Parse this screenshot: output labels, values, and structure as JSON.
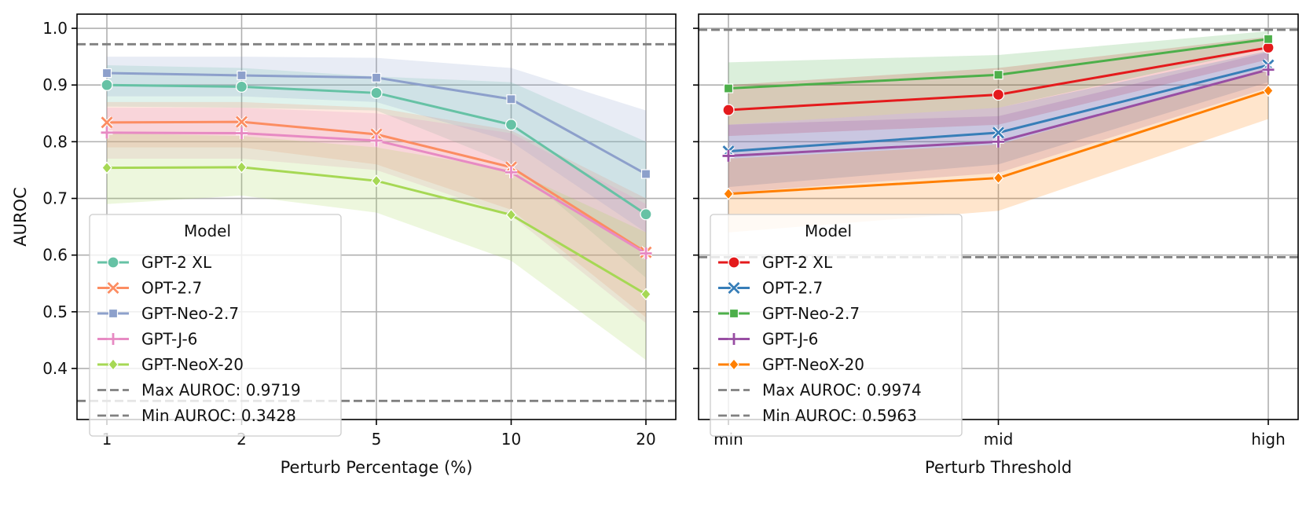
{
  "chart_data": [
    {
      "type": "line",
      "xlabel": "Perturb Percentage (%)",
      "ylabel": "AUROC",
      "categories": [
        "1",
        "2",
        "5",
        "10",
        "20"
      ],
      "ylim": [
        0.31,
        1.025
      ],
      "yticks": [
        0.4,
        0.5,
        0.6,
        0.7,
        0.8,
        0.9,
        1.0
      ],
      "ytick_labels": [
        "0.4",
        "0.5",
        "0.6",
        "0.7",
        "0.8",
        "0.9",
        "1.0"
      ],
      "grid": true,
      "legend": {
        "title": "Model",
        "placement": "lower-left"
      },
      "series": [
        {
          "name": "GPT-2 XL",
          "color": "#66c2a5",
          "marker": "circle",
          "values": [
            0.9,
            0.897,
            0.886,
            0.83,
            0.672
          ],
          "lower": [
            0.862,
            0.86,
            0.855,
            0.76,
            0.56
          ],
          "upper": [
            0.935,
            0.93,
            0.915,
            0.905,
            0.8
          ]
        },
        {
          "name": "OPT-2.7",
          "color": "#fc8d62",
          "marker": "x",
          "values": [
            0.834,
            0.835,
            0.813,
            0.755,
            0.605
          ],
          "lower": [
            0.79,
            0.79,
            0.76,
            0.68,
            0.49
          ],
          "upper": [
            0.87,
            0.87,
            0.86,
            0.82,
            0.7
          ]
        },
        {
          "name": "GPT-Neo-2.7",
          "color": "#8da0cb",
          "marker": "square",
          "values": [
            0.921,
            0.917,
            0.913,
            0.875,
            0.743
          ],
          "lower": [
            0.88,
            0.88,
            0.87,
            0.8,
            0.64
          ],
          "upper": [
            0.95,
            0.95,
            0.948,
            0.93,
            0.855
          ]
        },
        {
          "name": "GPT-J-6",
          "color": "#e78ac3",
          "marker": "plus",
          "values": [
            0.816,
            0.815,
            0.802,
            0.746,
            0.603
          ],
          "lower": [
            0.77,
            0.77,
            0.75,
            0.67,
            0.48
          ],
          "upper": [
            0.86,
            0.86,
            0.85,
            0.815,
            0.69
          ]
        },
        {
          "name": "GPT-NeoX-20",
          "color": "#a6d854",
          "marker": "diamond",
          "values": [
            0.754,
            0.755,
            0.731,
            0.671,
            0.531
          ],
          "lower": [
            0.69,
            0.705,
            0.675,
            0.59,
            0.415
          ],
          "upper": [
            0.815,
            0.81,
            0.79,
            0.75,
            0.64
          ]
        }
      ],
      "reference_lines": [
        {
          "label": "Max AUROC: 0.9719",
          "value": 0.9719
        },
        {
          "label": "Min AUROC: 0.3428",
          "value": 0.3428
        }
      ]
    },
    {
      "type": "line",
      "xlabel": "Perturb Threshold",
      "ylabel": "",
      "categories": [
        "min",
        "mid",
        "high"
      ],
      "ylim": [
        0.31,
        1.025
      ],
      "yticks": [
        0.4,
        0.5,
        0.6,
        0.7,
        0.8,
        0.9,
        1.0
      ],
      "ytick_labels": [],
      "grid": true,
      "legend": {
        "title": "Model",
        "placement": "lower-left"
      },
      "series": [
        {
          "name": "GPT-2 XL",
          "color": "#e41a1c",
          "marker": "circle",
          "values": [
            0.856,
            0.883,
            0.966
          ],
          "lower": [
            0.81,
            0.83,
            0.945
          ],
          "upper": [
            0.9,
            0.93,
            0.985
          ]
        },
        {
          "name": "OPT-2.7",
          "color": "#377eb8",
          "marker": "x",
          "values": [
            0.783,
            0.816,
            0.935
          ],
          "lower": [
            0.72,
            0.76,
            0.905
          ],
          "upper": [
            0.83,
            0.86,
            0.96
          ]
        },
        {
          "name": "GPT-Neo-2.7",
          "color": "#4daf4a",
          "marker": "square",
          "values": [
            0.894,
            0.918,
            0.981
          ],
          "lower": [
            0.83,
            0.86,
            0.965
          ],
          "upper": [
            0.94,
            0.953,
            0.995
          ]
        },
        {
          "name": "GPT-J-6",
          "color": "#984ea3",
          "marker": "plus",
          "values": [
            0.775,
            0.8,
            0.927
          ],
          "lower": [
            0.71,
            0.745,
            0.895
          ],
          "upper": [
            0.83,
            0.845,
            0.958
          ]
        },
        {
          "name": "GPT-NeoX-20",
          "color": "#ff7f00",
          "marker": "diamond",
          "values": [
            0.708,
            0.736,
            0.89
          ],
          "lower": [
            0.64,
            0.678,
            0.84
          ],
          "upper": [
            0.77,
            0.795,
            0.93
          ]
        }
      ],
      "reference_lines": [
        {
          "label": "Max AUROC: 0.9974",
          "value": 0.9974
        },
        {
          "label": "Min AUROC: 0.5963",
          "value": 0.5963
        }
      ]
    }
  ]
}
